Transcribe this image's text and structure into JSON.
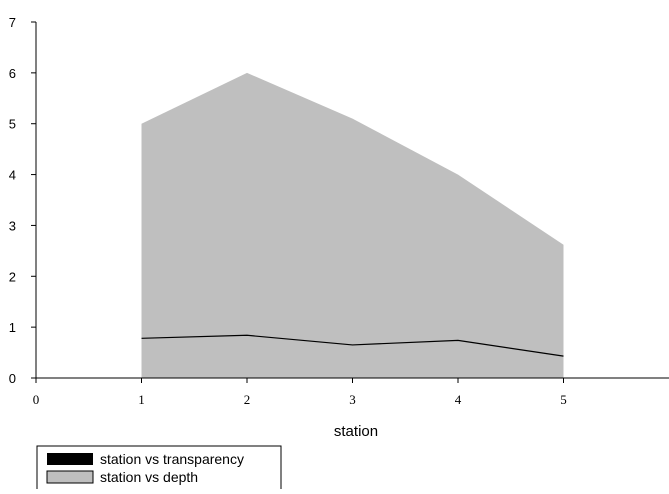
{
  "chart_data": {
    "type": "area",
    "xlabel": "station",
    "ylabel": "",
    "xlim": [
      0,
      6
    ],
    "ylim": [
      0,
      7
    ],
    "x_ticks": [
      "0",
      "1",
      "2",
      "3",
      "4",
      "5"
    ],
    "y_ticks": [
      "0",
      "1",
      "2",
      "3",
      "4",
      "5",
      "6",
      "7"
    ],
    "x": [
      1,
      2,
      3,
      4,
      5
    ],
    "series": [
      {
        "name": "station vs transparency",
        "type": "line",
        "color": "#000000",
        "values": [
          0.78,
          0.84,
          0.65,
          0.74,
          0.43
        ]
      },
      {
        "name": "station vs depth",
        "type": "area",
        "color": "#bfbfbf",
        "values": [
          5.0,
          6.0,
          5.1,
          4.0,
          2.62
        ]
      }
    ],
    "legend_position": "bottom-left",
    "grid": false
  }
}
